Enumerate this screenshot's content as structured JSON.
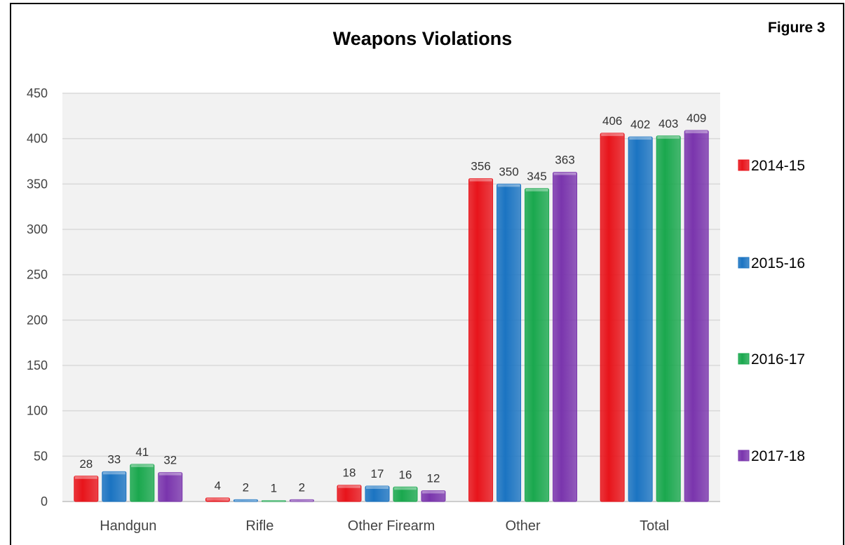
{
  "figure_label": "Figure 3",
  "chart_data": {
    "type": "bar",
    "title": "Weapons Violations",
    "xlabel": "",
    "ylabel": "",
    "categories": [
      "Handgun",
      "Rifle",
      "Other Firearm",
      "Other",
      "Total"
    ],
    "series": [
      {
        "name": "2014-15",
        "color": "#e8141b",
        "values": [
          28,
          4,
          18,
          356,
          406
        ]
      },
      {
        "name": "2015-16",
        "color": "#1b74c2",
        "values": [
          33,
          2,
          17,
          350,
          402
        ]
      },
      {
        "name": "2016-17",
        "color": "#1aa84e",
        "values": [
          41,
          1,
          16,
          345,
          403
        ]
      },
      {
        "name": "2017-18",
        "color": "#7a35ad",
        "values": [
          32,
          2,
          12,
          363,
          409
        ]
      }
    ],
    "ylim": [
      0,
      450
    ],
    "yticks": [
      0,
      50,
      100,
      150,
      200,
      250,
      300,
      350,
      400,
      450
    ],
    "grid": true,
    "legend_position": "right"
  }
}
